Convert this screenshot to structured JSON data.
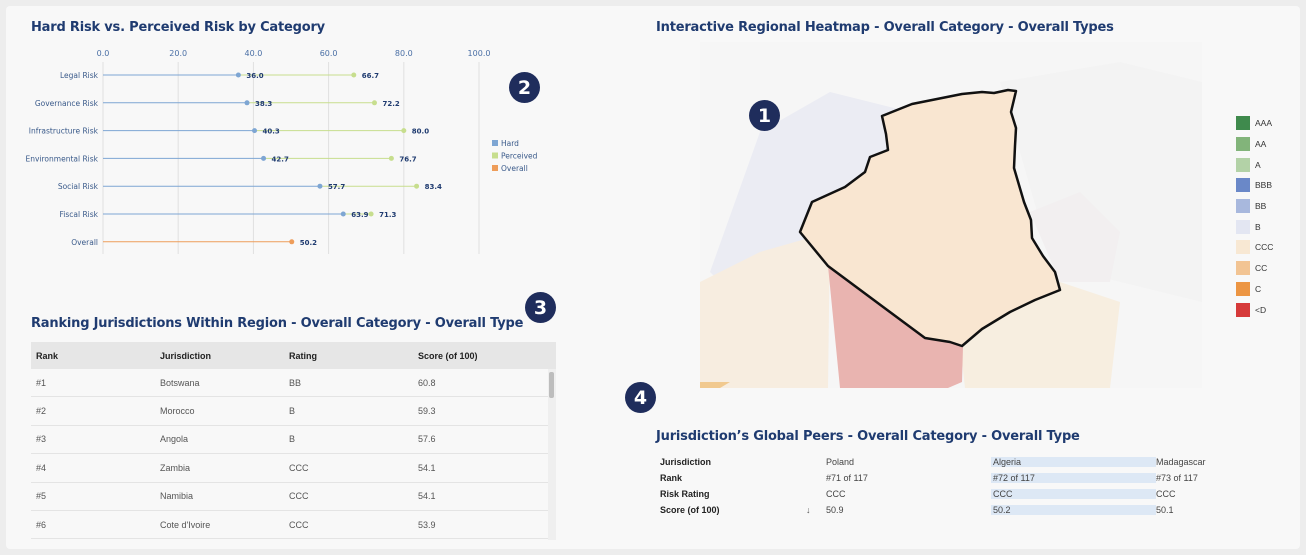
{
  "risk_chart": {
    "title": "Hard Risk vs. Perceived Risk by Category",
    "badge": "2",
    "chart_data": {
      "type": "scatter",
      "title": "Hard Risk vs. Perceived Risk by Category",
      "x_ticks": [
        "0.0",
        "20.0",
        "40.0",
        "60.0",
        "80.0",
        "100.0"
      ],
      "xlim": [
        0,
        100
      ],
      "categories": [
        "Legal Risk",
        "Governance Risk",
        "Infrastructure Risk",
        "Environmental Risk",
        "Social Risk",
        "Fiscal Risk",
        "Overall"
      ],
      "series": [
        {
          "name": "Hard",
          "color": "#7ea6d3",
          "values": [
            36.0,
            38.3,
            40.3,
            42.7,
            57.7,
            63.9,
            null
          ]
        },
        {
          "name": "Perceived",
          "color": "#c7de8e",
          "values": [
            66.7,
            72.2,
            80.0,
            76.7,
            83.4,
            71.3,
            null
          ]
        },
        {
          "name": "Overall",
          "color": "#ee9d5a",
          "values": [
            null,
            null,
            null,
            null,
            null,
            null,
            50.2
          ]
        }
      ],
      "labels": {
        "hard": [
          "36.0",
          "38.3",
          "40.3",
          "42.7",
          "57.7",
          "63.9",
          null
        ],
        "perceived": [
          "66.7",
          "72.2",
          "80.0",
          "76.7",
          "83.4",
          "71.3",
          null
        ],
        "overall": [
          null,
          null,
          null,
          null,
          null,
          null,
          "50.2"
        ]
      },
      "legend_position": "right",
      "grid": true
    }
  },
  "heatmap": {
    "title": "Interactive Regional Heatmap - Overall Category - Overall Types",
    "badge": "1",
    "legend": [
      {
        "label": "AAA",
        "color": "#3f8a4d"
      },
      {
        "label": "AA",
        "color": "#82b47a"
      },
      {
        "label": "A",
        "color": "#b3d2a7"
      },
      {
        "label": "BBB",
        "color": "#6a88c8"
      },
      {
        "label": "BB",
        "color": "#a8b8dd"
      },
      {
        "label": "B",
        "color": "#e3e6f2"
      },
      {
        "label": "CCC",
        "color": "#f8e8d3"
      },
      {
        "label": "CC",
        "color": "#f2c493"
      },
      {
        "label": "C",
        "color": "#ec9543"
      },
      {
        "label": "<D",
        "color": "#d63a3a"
      }
    ]
  },
  "ranking": {
    "title": "Ranking Jurisdictions Within Region - Overall Category - Overall Type",
    "badge": "3",
    "headers": [
      "Rank",
      "Jurisdiction",
      "Rating",
      "Score (of 100)"
    ],
    "rows": [
      [
        "#1",
        "Botswana",
        "BB",
        "60.8"
      ],
      [
        "#2",
        "Morocco",
        "B",
        "59.3"
      ],
      [
        "#3",
        "Angola",
        "B",
        "57.6"
      ],
      [
        "#4",
        "Zambia",
        "CCC",
        "54.1"
      ],
      [
        "#5",
        "Namibia",
        "CCC",
        "54.1"
      ],
      [
        "#6",
        "Cote d'Ivoire",
        "CCC",
        "53.9"
      ]
    ]
  },
  "peers": {
    "title": "Jurisdiction’s Global Peers - Overall Category - Overall Type",
    "badge": "4",
    "row_labels": [
      "Jurisdiction",
      "Rank",
      "Risk Rating",
      "Score (of 100)"
    ],
    "sort_arrow": "↓",
    "columns": [
      {
        "values": [
          "Poland",
          "#71 of 117",
          "CCC",
          "50.9"
        ],
        "highlight": false
      },
      {
        "values": [
          "Algeria",
          "#72 of 117",
          "CCC",
          "50.2"
        ],
        "highlight": true
      },
      {
        "values": [
          "Madagascar",
          "#73 of 117",
          "CCC",
          "50.1"
        ],
        "highlight": false
      }
    ]
  }
}
